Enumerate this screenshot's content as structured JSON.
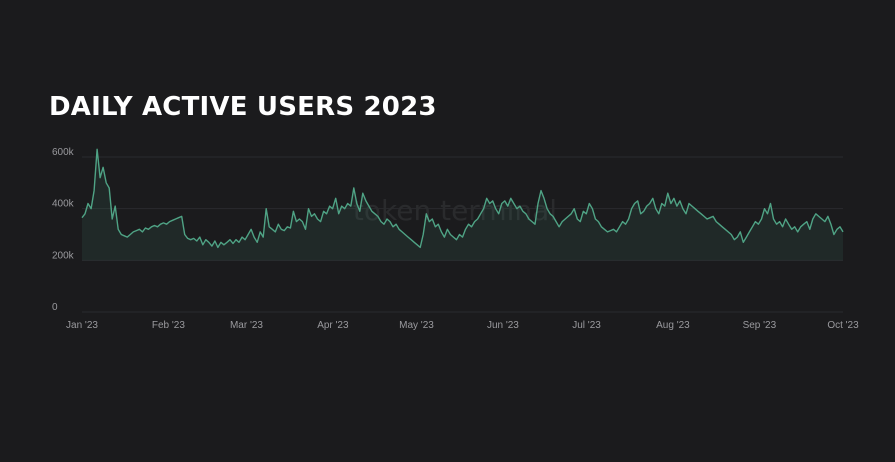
{
  "chart_data": {
    "type": "line",
    "title": "DAILY ACTIVE USERS 2023",
    "xlabel": "",
    "ylabel": "",
    "x_start": "2023-01-01",
    "x_ticks": [
      {
        "label": "Jan '23",
        "date": "2023-01-01"
      },
      {
        "label": "Feb '23",
        "date": "2023-02-01"
      },
      {
        "label": "Mar '23",
        "date": "2023-03-01"
      },
      {
        "label": "Apr '23",
        "date": "2023-04-01"
      },
      {
        "label": "May '23",
        "date": "2023-05-01"
      },
      {
        "label": "Jun '23",
        "date": "2023-06-01"
      },
      {
        "label": "Jul '23",
        "date": "2023-07-01"
      },
      {
        "label": "Aug '23",
        "date": "2023-08-01"
      },
      {
        "label": "Sep '23",
        "date": "2023-09-01"
      },
      {
        "label": "Oct '23",
        "date": "2023-10-01"
      }
    ],
    "y_ticks": [
      {
        "label": "0",
        "value": 0
      },
      {
        "label": "200k",
        "value": 200000
      },
      {
        "label": "400k",
        "value": 400000
      },
      {
        "label": "600k",
        "value": 600000
      }
    ],
    "ylim": [
      0,
      600000
    ],
    "grid": true,
    "line_color": "#4fa385",
    "watermark": "token terminal",
    "series": [
      {
        "values": [
          365,
          380,
          420,
          400,
          470,
          630,
          520,
          560,
          500,
          480,
          360,
          410,
          320,
          300,
          295,
          290,
          300,
          310,
          315,
          320,
          310,
          325,
          320,
          330,
          335,
          330,
          340,
          345,
          340,
          350,
          355,
          360,
          365,
          370,
          300,
          285,
          280,
          285,
          275,
          290,
          260,
          280,
          270,
          255,
          275,
          250,
          270,
          260,
          270,
          280,
          265,
          280,
          270,
          290,
          280,
          300,
          320,
          290,
          270,
          310,
          290,
          400,
          330,
          320,
          310,
          340,
          320,
          315,
          330,
          325,
          390,
          350,
          360,
          350,
          320,
          400,
          370,
          380,
          360,
          350,
          390,
          380,
          410,
          400,
          440,
          380,
          410,
          400,
          420,
          410,
          480,
          420,
          390,
          460,
          430,
          410,
          390,
          380,
          370,
          350,
          340,
          360,
          350,
          330,
          340,
          320,
          310,
          300,
          290,
          280,
          270,
          260,
          250,
          300,
          380,
          350,
          360,
          330,
          340,
          310,
          290,
          320,
          300,
          290,
          280,
          300,
          290,
          320,
          340,
          330,
          350,
          360,
          380,
          400,
          440,
          420,
          430,
          400,
          380,
          420,
          430,
          410,
          440,
          420,
          400,
          410,
          390,
          380,
          360,
          350,
          340,
          420,
          470,
          440,
          400,
          380,
          370,
          350,
          330,
          350,
          360,
          370,
          380,
          400,
          360,
          350,
          390,
          380,
          420,
          400,
          360,
          350,
          330,
          320,
          310,
          315,
          320,
          310,
          330,
          350,
          340,
          360,
          400,
          420,
          430,
          380,
          390,
          410,
          420,
          440,
          400,
          380,
          420,
          410,
          460,
          420,
          440,
          410,
          430,
          400,
          380,
          420,
          410,
          400,
          390,
          380,
          370,
          360,
          365,
          370,
          350,
          340,
          330,
          320,
          310,
          300,
          280,
          290,
          310,
          270,
          290,
          310,
          330,
          350,
          340,
          360,
          400,
          380,
          420,
          360,
          340,
          350,
          330,
          360,
          340,
          320,
          330,
          310,
          330,
          340,
          350,
          320,
          360,
          380,
          370,
          360,
          350,
          370,
          340,
          300,
          320,
          330,
          310
        ],
        "values_unit": "thousands"
      }
    ]
  }
}
